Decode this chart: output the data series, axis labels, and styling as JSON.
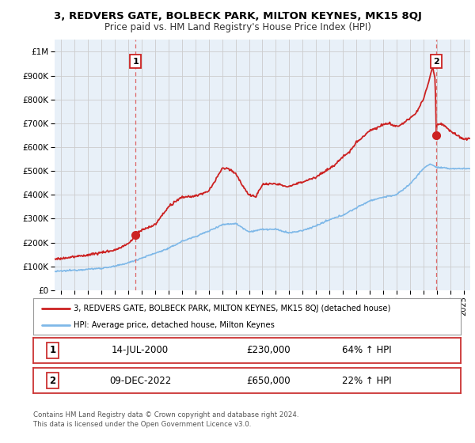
{
  "title": "3, REDVERS GATE, BOLBECK PARK, MILTON KEYNES, MK15 8QJ",
  "subtitle": "Price paid vs. HM Land Registry's House Price Index (HPI)",
  "legend_line1": "3, REDVERS GATE, BOLBECK PARK, MILTON KEYNES, MK15 8QJ (detached house)",
  "legend_line2": "HPI: Average price, detached house, Milton Keynes",
  "annotation1_label": "1",
  "annotation1_date": "14-JUL-2000",
  "annotation1_price": "£230,000",
  "annotation1_hpi": "64% ↑ HPI",
  "annotation2_label": "2",
  "annotation2_date": "09-DEC-2022",
  "annotation2_price": "£650,000",
  "annotation2_hpi": "22% ↑ HPI",
  "footer1": "Contains HM Land Registry data © Crown copyright and database right 2024.",
  "footer2": "This data is licensed under the Open Government Licence v3.0.",
  "sale1_year": 2000.54,
  "sale1_value": 230000,
  "sale2_year": 2022.94,
  "sale2_value": 650000,
  "hpi_color": "#7eb8e8",
  "price_color": "#cc2222",
  "vline_color": "#dd6666",
  "chart_bg": "#e8f0f8",
  "fig_bg": "#ffffff",
  "ylim_max": 1050000,
  "yticks": [
    0,
    100000,
    200000,
    300000,
    400000,
    500000,
    600000,
    700000,
    800000,
    900000,
    1000000
  ],
  "ytick_labels": [
    "£0",
    "£100K",
    "£200K",
    "£300K",
    "£400K",
    "£500K",
    "£600K",
    "£700K",
    "£800K",
    "£900K",
    "£1M"
  ],
  "xmin": 1994.5,
  "xmax": 2025.5
}
